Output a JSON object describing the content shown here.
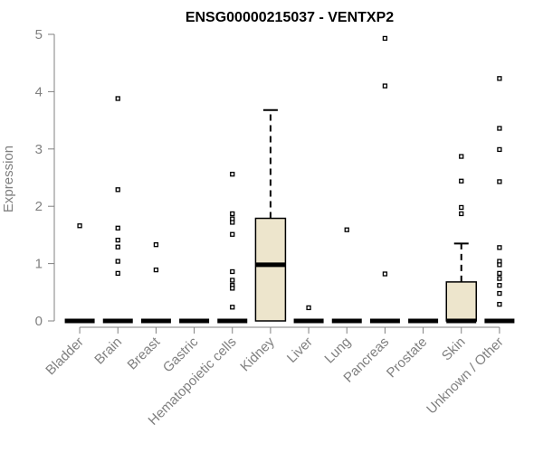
{
  "chart_data": {
    "type": "boxplot",
    "title": "ENSG00000215037 - VENTXP2",
    "xlabel": "",
    "ylabel": "Expression",
    "ylim": [
      0,
      5
    ],
    "yticks": [
      "0",
      "1",
      "2",
      "3",
      "4",
      "5"
    ],
    "categories": [
      "Bladder",
      "Brain",
      "Breast",
      "Gastric",
      "Hematopoietic cells",
      "Kidney",
      "Liver",
      "Lung",
      "Pancreas",
      "Prostate",
      "Skin",
      "Unknown / Other"
    ],
    "boxes": [
      {
        "q1": 0,
        "median": 0,
        "q3": 0,
        "whisker_low": 0,
        "whisker_high": 0,
        "outliers": [
          1.66
        ]
      },
      {
        "q1": 0,
        "median": 0,
        "q3": 0,
        "whisker_low": 0,
        "whisker_high": 0,
        "outliers": [
          3.88,
          2.29,
          1.62,
          1.41,
          1.29,
          1.04,
          0.83
        ]
      },
      {
        "q1": 0,
        "median": 0,
        "q3": 0,
        "whisker_low": 0,
        "whisker_high": 0,
        "outliers": [
          1.33,
          0.89
        ]
      },
      {
        "q1": 0,
        "median": 0,
        "q3": 0,
        "whisker_low": 0,
        "whisker_high": 0,
        "outliers": []
      },
      {
        "q1": 0,
        "median": 0,
        "q3": 0,
        "whisker_low": 0,
        "whisker_high": 0,
        "outliers": [
          2.56,
          1.87,
          1.78,
          1.72,
          1.51,
          0.86,
          0.71,
          0.62,
          0.57,
          0.24
        ]
      },
      {
        "q1": 0,
        "median": 0.98,
        "q3": 1.79,
        "whisker_low": 0,
        "whisker_high": 3.68,
        "outliers": []
      },
      {
        "q1": 0,
        "median": 0,
        "q3": 0,
        "whisker_low": 0,
        "whisker_high": 0,
        "outliers": [
          0.23
        ]
      },
      {
        "q1": 0,
        "median": 0,
        "q3": 0,
        "whisker_low": 0,
        "whisker_high": 0,
        "outliers": [
          1.59
        ]
      },
      {
        "q1": 0,
        "median": 0,
        "q3": 0,
        "whisker_low": 0,
        "whisker_high": 0,
        "outliers": [
          4.93,
          4.1,
          0.82
        ]
      },
      {
        "q1": 0,
        "median": 0,
        "q3": 0,
        "whisker_low": 0,
        "whisker_high": 0,
        "outliers": []
      },
      {
        "q1": 0,
        "median": 0,
        "q3": 0.68,
        "whisker_low": 0,
        "whisker_high": 1.35,
        "outliers": [
          2.87,
          2.44,
          1.98,
          1.87
        ]
      },
      {
        "q1": 0,
        "median": 0,
        "q3": 0,
        "whisker_low": 0,
        "whisker_high": 0,
        "outliers": [
          4.23,
          3.36,
          2.99,
          2.43,
          1.28,
          1.04,
          0.98,
          0.83,
          0.74,
          0.62,
          0.48,
          0.29
        ]
      }
    ],
    "colors": {
      "box_fill": "#ede5cc",
      "axis": "#808080",
      "line": "#000000"
    }
  }
}
